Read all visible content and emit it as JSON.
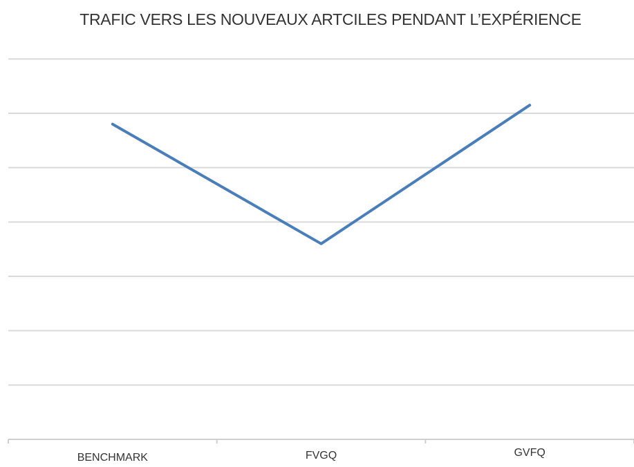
{
  "chart_data": {
    "type": "line",
    "title": "TRAFIC VERS LES NOUVEAUX ARTCILES PENDANT L’EXPÉRIENCE",
    "xlabel": "",
    "ylabel": "",
    "categories": [
      "BENCHMARK",
      "FVGQ",
      "GVFQ"
    ],
    "series": [
      {
        "values": [
          5.8,
          3.6,
          6.15
        ],
        "color": "#4a7ebb"
      }
    ],
    "ylim": [
      0,
      7.5
    ],
    "grid": true,
    "legend": "none"
  }
}
